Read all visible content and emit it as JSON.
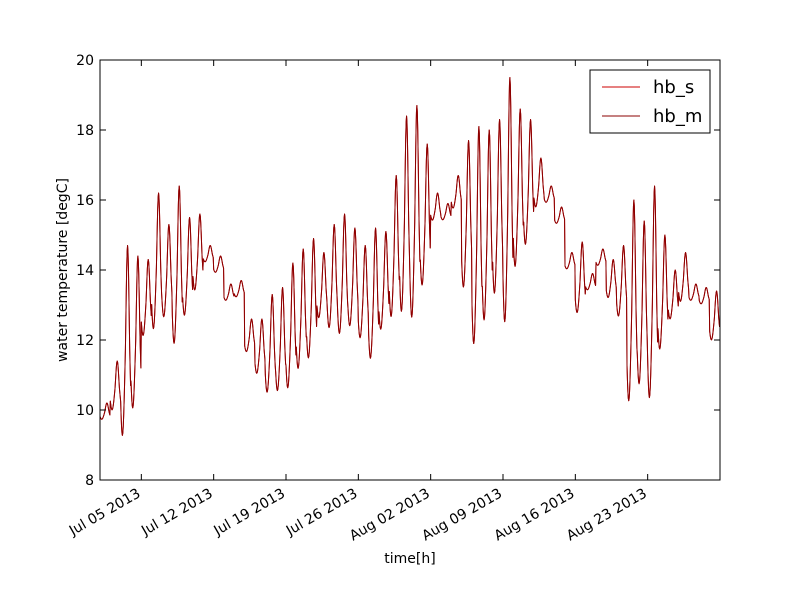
{
  "chart_data": {
    "type": "line",
    "xlabel": "time[h]",
    "ylabel": "water temperature [degC]",
    "x_ticks": [
      "Jul 05 2013",
      "Jul 12 2013",
      "Jul 19 2013",
      "Jul 26 2013",
      "Aug 02 2013",
      "Aug 09 2013",
      "Aug 16 2013",
      "Aug 23 2013"
    ],
    "y_ticks": [
      "8",
      "10",
      "12",
      "14",
      "16",
      "18",
      "20"
    ],
    "xlim": [
      "2013-07-01T00:00",
      "2013-08-30T00:00"
    ],
    "ylim": [
      8,
      20
    ],
    "grid": false,
    "legend_position": "top-right",
    "sampling": "daily mean and daily max (hourly series)",
    "series": [
      {
        "name": "hb_s",
        "color": "#cc0000",
        "daily_mean": [
          9.9,
          10.5,
          11.2,
          11.6,
          12.9,
          13.7,
          13.6,
          13.5,
          13.7,
          14.2,
          14.4,
          14.1,
          13.3,
          13.4,
          12.0,
          11.6,
          11.5,
          11.6,
          11.9,
          12.4,
          12.7,
          13.3,
          13.4,
          13.4,
          13.4,
          13.0,
          12.8,
          13.3,
          14.1,
          14.8,
          14.8,
          15.0,
          15.7,
          15.6,
          16.1,
          15.0,
          14.1,
          14.5,
          15.1,
          15.0,
          15.7,
          16.0,
          16.3,
          16.1,
          15.5,
          14.2,
          13.5,
          13.6,
          14.3,
          13.6,
          13.4,
          12.3,
          12.4,
          12.5,
          12.9,
          13.1,
          13.6,
          13.3,
          13.2,
          12.5
        ],
        "daily_max": [
          9.2,
          11.4,
          14.7,
          14.4,
          14.3,
          16.2,
          15.3,
          16.4,
          15.5,
          15.6,
          14.5,
          14.2,
          13.5,
          13.3,
          12.6,
          12.6,
          13.3,
          13.5,
          14.2,
          14.6,
          14.9,
          14.5,
          15.3,
          15.6,
          15.2,
          14.7,
          15.2,
          15.1,
          16.7,
          18.4,
          18.7,
          17.6,
          16.2,
          15.9,
          16.7,
          17.7,
          18.1,
          18.0,
          18.3,
          19.5,
          18.6,
          18.3,
          17.2,
          16.4,
          15.2,
          14.2,
          14.8,
          13.7,
          13.9,
          14.3,
          14.7,
          16.0,
          15.4,
          16.4,
          15.0,
          14.0,
          14.5,
          13.3,
          12.5,
          13.4
        ]
      },
      {
        "name": "hb_m",
        "color": "#8b0000",
        "daily_mean": [
          9.9,
          10.5,
          11.2,
          11.6,
          12.9,
          13.7,
          13.6,
          13.5,
          13.7,
          14.2,
          14.4,
          14.1,
          13.3,
          13.4,
          12.0,
          11.6,
          11.5,
          11.6,
          11.9,
          12.4,
          12.7,
          13.3,
          13.4,
          13.4,
          13.4,
          13.0,
          12.8,
          13.3,
          14.1,
          14.8,
          14.8,
          15.0,
          15.7,
          15.6,
          16.1,
          15.0,
          14.1,
          14.5,
          15.1,
          15.0,
          15.7,
          16.0,
          16.3,
          16.1,
          15.5,
          14.2,
          13.5,
          13.6,
          14.3,
          13.6,
          13.4,
          12.3,
          12.4,
          12.5,
          12.9,
          13.1,
          13.6,
          13.3,
          13.2,
          12.5
        ],
        "daily_max": [
          9.2,
          11.4,
          14.7,
          14.4,
          14.3,
          16.2,
          15.3,
          16.4,
          15.5,
          15.6,
          14.5,
          14.2,
          13.5,
          13.3,
          12.6,
          12.6,
          13.3,
          13.5,
          14.2,
          14.6,
          14.9,
          14.5,
          15.3,
          15.6,
          15.2,
          14.7,
          15.2,
          15.1,
          16.7,
          18.4,
          18.7,
          17.6,
          16.2,
          15.9,
          16.7,
          17.7,
          18.1,
          18.0,
          18.3,
          19.5,
          18.6,
          18.3,
          17.2,
          16.4,
          15.2,
          14.2,
          14.8,
          13.7,
          13.9,
          14.3,
          14.7,
          16.0,
          15.4,
          16.4,
          15.0,
          14.0,
          14.5,
          13.3,
          12.5,
          13.4
        ]
      }
    ]
  },
  "colors": {
    "hb_s": "#cc0000",
    "hb_m": "#8b0000",
    "axes": "#000000",
    "background": "#ffffff"
  }
}
